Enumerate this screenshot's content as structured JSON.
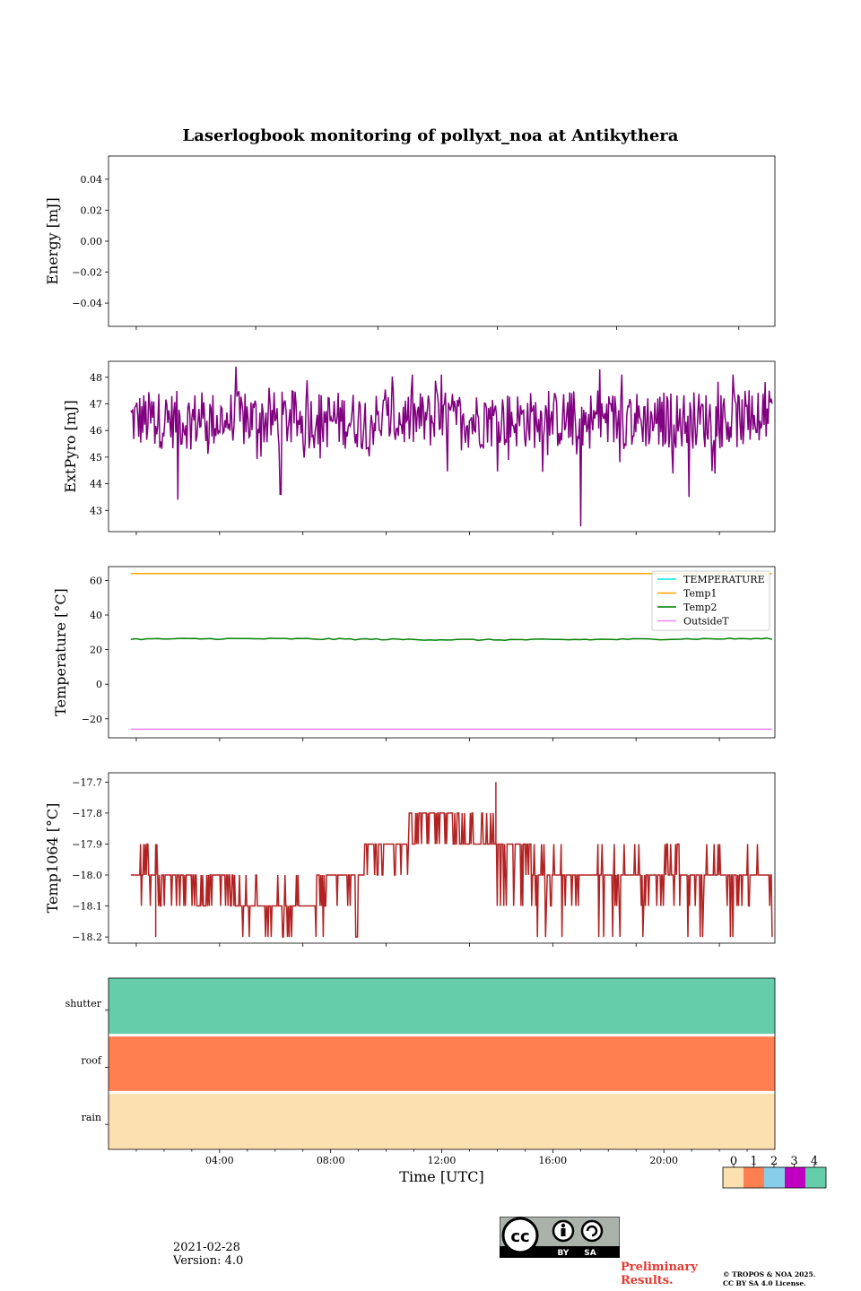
{
  "title": "Laserlogbook monitoring of pollyxt_noa at Antikythera",
  "footer": {
    "date": "2021-02-28",
    "version": "Version: 4.0",
    "preliminary_line1": "Preliminary",
    "preliminary_line2": "Results.",
    "copyright_line1": "© TROPOS & NOA 2025.",
    "copyright_line2": "CC BY SA 4.0 License.",
    "license_badge": {
      "icon": "cc-by-sa-icon",
      "labels": [
        "BY",
        "SA"
      ]
    }
  },
  "colorbar": {
    "ticks": [
      "0",
      "1",
      "2",
      "3",
      "4"
    ],
    "colors": [
      "#fde0b0",
      "#ff7f50",
      "#87ceeb",
      "#c000c0",
      "#66cdaa"
    ]
  },
  "chart_data": [
    {
      "type": "line",
      "ylabel": "Energy [mJ]",
      "ylim": [
        -0.055,
        0.055
      ],
      "yticks": [
        "0.04",
        "0.02",
        "0.00",
        "−0.02",
        "−0.04"
      ],
      "ytick_values": [
        0.04,
        0.02,
        0.0,
        -0.02,
        -0.04
      ],
      "series": []
    },
    {
      "type": "line",
      "ylabel": "ExtPyro [mJ]",
      "ylim": [
        42.2,
        48.6
      ],
      "yticks": [
        "48",
        "47",
        "46",
        "45",
        "44",
        "43"
      ],
      "ytick_values": [
        48,
        47,
        46,
        45,
        44,
        43
      ],
      "series": [
        {
          "color": "#800080",
          "x_range_hours": [
            0.8,
            23.9
          ],
          "mean": 46.4,
          "min": 42.4,
          "max": 48.4,
          "notable_points": [
            [
              2.5,
              43.4
            ],
            [
              4.6,
              48.4
            ],
            [
              6.2,
              43.6
            ],
            [
              17.0,
              42.4
            ],
            [
              17.7,
              48.3
            ],
            [
              20.9,
              43.5
            ]
          ]
        }
      ]
    },
    {
      "type": "line",
      "ylabel": "Temperature [°C]",
      "ylim": [
        -31,
        68
      ],
      "yticks": [
        "60",
        "40",
        "20",
        "0",
        "−20"
      ],
      "ytick_values": [
        60,
        40,
        20,
        0,
        -20
      ],
      "legend": "top-right",
      "series": [
        {
          "name": "TEMPERATURE",
          "color": "#00e5e5",
          "values": []
        },
        {
          "name": "Temp1",
          "color": "#ffa500",
          "constant": 64.0,
          "x_range_hours": [
            0.8,
            23.9
          ]
        },
        {
          "name": "Temp2",
          "color": "#008000",
          "constant": 26.0,
          "x_range_hours": [
            0.8,
            23.9
          ]
        },
        {
          "name": "OutsideT",
          "color": "#ee82ee",
          "constant": -26.0,
          "x_range_hours": [
            0.8,
            23.9
          ]
        }
      ]
    },
    {
      "type": "line",
      "ylabel": "Temp1064 [°C]",
      "ylim": [
        -18.22,
        -17.67
      ],
      "yticks": [
        "−17.7",
        "−17.8",
        "−17.9",
        "−18.0",
        "−18.1",
        "−18.2"
      ],
      "ytick_values": [
        -17.7,
        -17.8,
        -17.9,
        -18.0,
        -18.1,
        -18.2
      ],
      "series": [
        {
          "color": "#b22222",
          "x_range_hours": [
            0.8,
            23.9
          ],
          "segments": [
            {
              "x": [
                0.8,
                2.3
              ],
              "base": -18.0,
              "alt": [
                -17.9,
                -18.1
              ]
            },
            {
              "x": [
                2.3,
                4.6
              ],
              "base": -18.0,
              "alt": [
                -18.1
              ]
            },
            {
              "x": [
                4.6,
                7.5
              ],
              "base": -18.1,
              "alt": [
                -18.0,
                -18.2
              ]
            },
            {
              "x": [
                7.5,
                9.2
              ],
              "base": -18.0,
              "alt": [
                -18.1,
                -18.2
              ]
            },
            {
              "x": [
                9.2,
                10.8
              ],
              "base": -17.9,
              "alt": [
                -18.0
              ]
            },
            {
              "x": [
                10.8,
                12.5
              ],
              "base": -17.8,
              "alt": [
                -17.9
              ]
            },
            {
              "x": [
                12.5,
                14.0
              ],
              "base": -17.9,
              "alt": [
                -17.8
              ]
            },
            {
              "x": [
                14.0,
                15.3
              ],
              "base": -17.9,
              "alt": [
                -18.0,
                -18.1
              ]
            },
            {
              "x": [
                15.3,
                23.9
              ],
              "base": -18.0,
              "alt": [
                -18.1,
                -18.2,
                -17.9
              ]
            }
          ],
          "notable_points": [
            [
              13.95,
              -17.7
            ],
            [
              1.7,
              -18.2
            ]
          ]
        }
      ]
    },
    {
      "type": "heatmap",
      "rows": [
        "rain",
        "roof",
        "shutter"
      ],
      "values": [
        0,
        1,
        4
      ],
      "xlabel": "Time [UTC]",
      "xticks": [
        "04:00",
        "08:00",
        "12:00",
        "16:00",
        "20:00"
      ],
      "xtick_values": [
        4,
        8,
        12,
        16,
        20
      ],
      "xlim": [
        0,
        24
      ]
    }
  ]
}
